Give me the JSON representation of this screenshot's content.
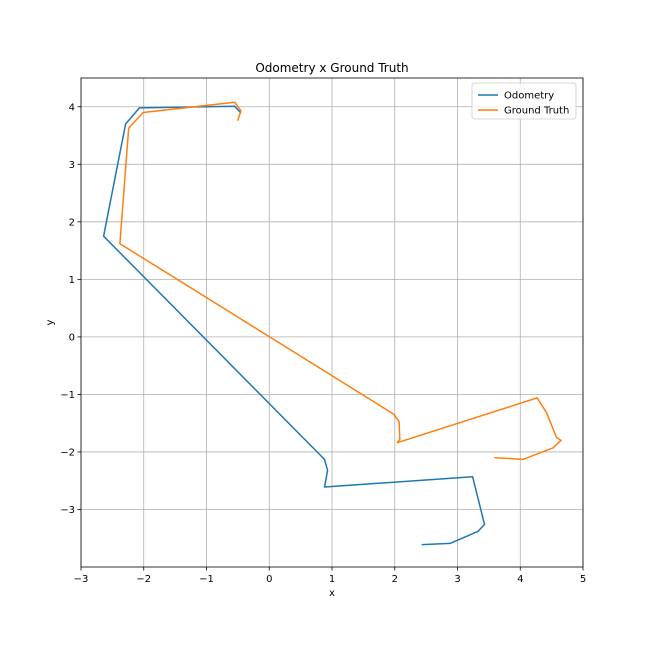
{
  "chart_data": {
    "type": "line",
    "title": "Odometry x Ground Truth",
    "xlabel": "x",
    "ylabel": "y",
    "xlim": [
      -3,
      5
    ],
    "ylim": [
      -4,
      4.5
    ],
    "xticks": [
      -3,
      -2,
      -1,
      0,
      1,
      2,
      3,
      4,
      5
    ],
    "yticks": [
      -3,
      -2,
      -1,
      0,
      1,
      2,
      3,
      4
    ],
    "grid": true,
    "legend_position": "top-right",
    "series": [
      {
        "name": "Odometry",
        "color": "#1f77b4",
        "x": [
          2.44,
          2.88,
          3.33,
          3.43,
          3.24,
          0.88,
          0.93,
          0.88,
          -2.64,
          -2.29,
          -2.07,
          -0.55,
          -0.46
        ],
        "y": [
          -3.61,
          -3.59,
          -3.38,
          -3.26,
          -2.43,
          -2.61,
          -2.32,
          -2.13,
          1.75,
          3.7,
          3.98,
          4.01,
          3.9
        ]
      },
      {
        "name": "Ground Truth",
        "color": "#ff7f0e",
        "x": [
          3.6,
          4.04,
          4.52,
          4.65,
          4.58,
          4.42,
          4.27,
          2.04,
          2.08,
          2.07,
          1.98,
          -2.38,
          -2.24,
          -2.01,
          -0.55,
          -0.45,
          -0.5
        ],
        "y": [
          -2.1,
          -2.13,
          -1.93,
          -1.8,
          -1.75,
          -1.32,
          -1.06,
          -1.84,
          -1.78,
          -1.47,
          -1.34,
          1.62,
          3.63,
          3.9,
          4.08,
          3.93,
          3.77
        ]
      }
    ]
  }
}
